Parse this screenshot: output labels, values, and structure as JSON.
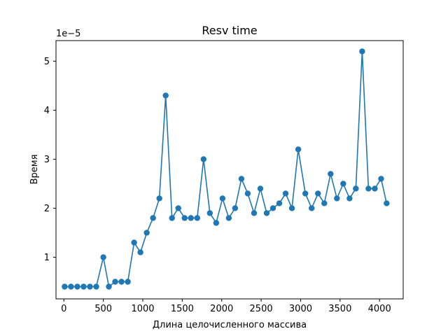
{
  "chart_data": {
    "type": "line",
    "title": "Resv time",
    "xlabel": "Длина целочисленного массива",
    "ylabel": "Время",
    "y_offset_label": "1e−5",
    "xlim": [
      -100,
      4300
    ],
    "ylim": [
      0.15,
      5.42
    ],
    "xticks": [
      0,
      500,
      1000,
      1500,
      2000,
      2500,
      3000,
      3500,
      4000
    ],
    "xtick_labels": [
      "0",
      "500",
      "1000",
      "1500",
      "2000",
      "2500",
      "3000",
      "3500",
      "4000"
    ],
    "yticks": [
      1,
      2,
      3,
      4,
      5
    ],
    "ytick_labels": [
      "1",
      "2",
      "3",
      "4",
      "5"
    ],
    "grid": false,
    "color": "#1f77b4",
    "marker": "circle",
    "x": [
      10,
      90,
      170,
      250,
      330,
      410,
      500,
      570,
      650,
      730,
      810,
      890,
      970,
      1050,
      1130,
      1210,
      1290,
      1370,
      1450,
      1530,
      1610,
      1690,
      1770,
      1850,
      1930,
      2010,
      2090,
      2170,
      2250,
      2330,
      2410,
      2490,
      2570,
      2650,
      2730,
      2810,
      2890,
      2970,
      3060,
      3140,
      3220,
      3300,
      3380,
      3460,
      3540,
      3620,
      3700,
      3780,
      3860,
      3940,
      4020,
      4090
    ],
    "y": [
      0.4,
      0.4,
      0.4,
      0.4,
      0.4,
      0.4,
      1.0,
      0.4,
      0.5,
      0.5,
      0.5,
      1.3,
      1.1,
      1.5,
      1.8,
      2.2,
      4.3,
      1.8,
      2.0,
      1.8,
      1.8,
      1.8,
      3.0,
      1.9,
      1.7,
      2.2,
      1.8,
      2.0,
      2.6,
      2.3,
      1.9,
      2.4,
      1.9,
      2.0,
      2.1,
      2.3,
      2.0,
      3.2,
      2.3,
      2.0,
      2.3,
      2.1,
      2.7,
      2.2,
      2.5,
      2.2,
      2.4,
      5.2,
      2.4,
      2.4,
      2.6,
      2.1
    ]
  }
}
